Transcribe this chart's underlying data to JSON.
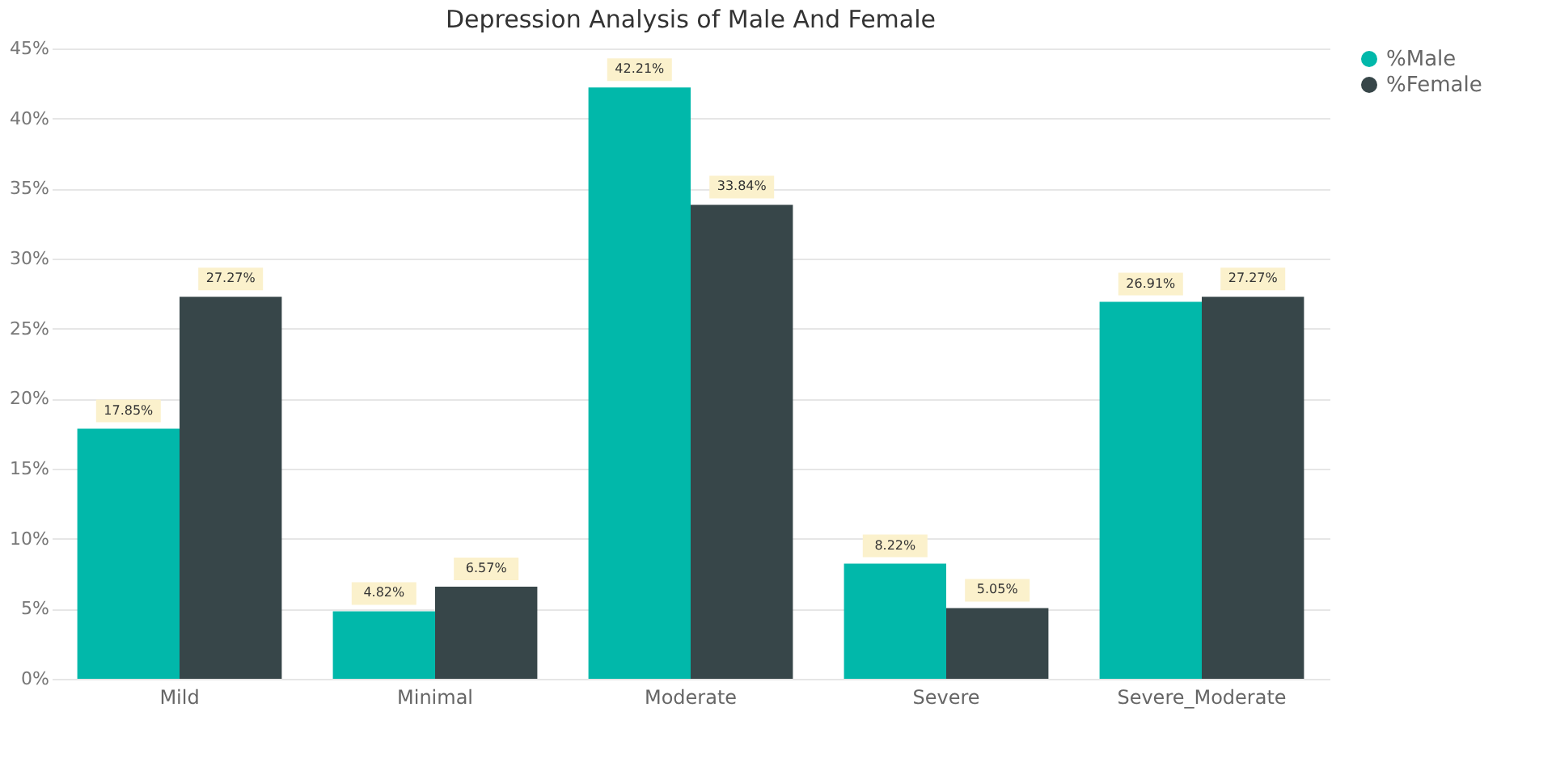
{
  "chart_data": {
    "type": "bar",
    "title": "Depression Analysis of Male And Female",
    "categories": [
      "Mild",
      "Minimal",
      "Moderate",
      "Severe",
      "Severe_Moderate"
    ],
    "series": [
      {
        "name": "%Male",
        "color": "#01b8aa",
        "values": [
          17.85,
          4.82,
          42.21,
          8.22,
          26.91
        ],
        "value_labels": [
          "17.85%",
          "4.82%",
          "42.21%",
          "8.22%",
          "26.91%"
        ]
      },
      {
        "name": "%Female",
        "color": "#374649",
        "values": [
          27.27,
          6.57,
          33.84,
          5.05,
          27.27
        ],
        "value_labels": [
          "27.27%",
          "6.57%",
          "33.84%",
          "5.05%",
          "27.27%"
        ]
      }
    ],
    "ylim": [
      0,
      45
    ],
    "yticks": [
      {
        "value": 0,
        "label": "0%"
      },
      {
        "value": 5,
        "label": "5%"
      },
      {
        "value": 10,
        "label": "10%"
      },
      {
        "value": 15,
        "label": "15%"
      },
      {
        "value": 20,
        "label": "20%"
      },
      {
        "value": 25,
        "label": "25%"
      },
      {
        "value": 30,
        "label": "30%"
      },
      {
        "value": 35,
        "label": "35%"
      },
      {
        "value": 40,
        "label": "40%"
      },
      {
        "value": 45,
        "label": "45%"
      }
    ],
    "grid": "y",
    "legend": "top right"
  }
}
